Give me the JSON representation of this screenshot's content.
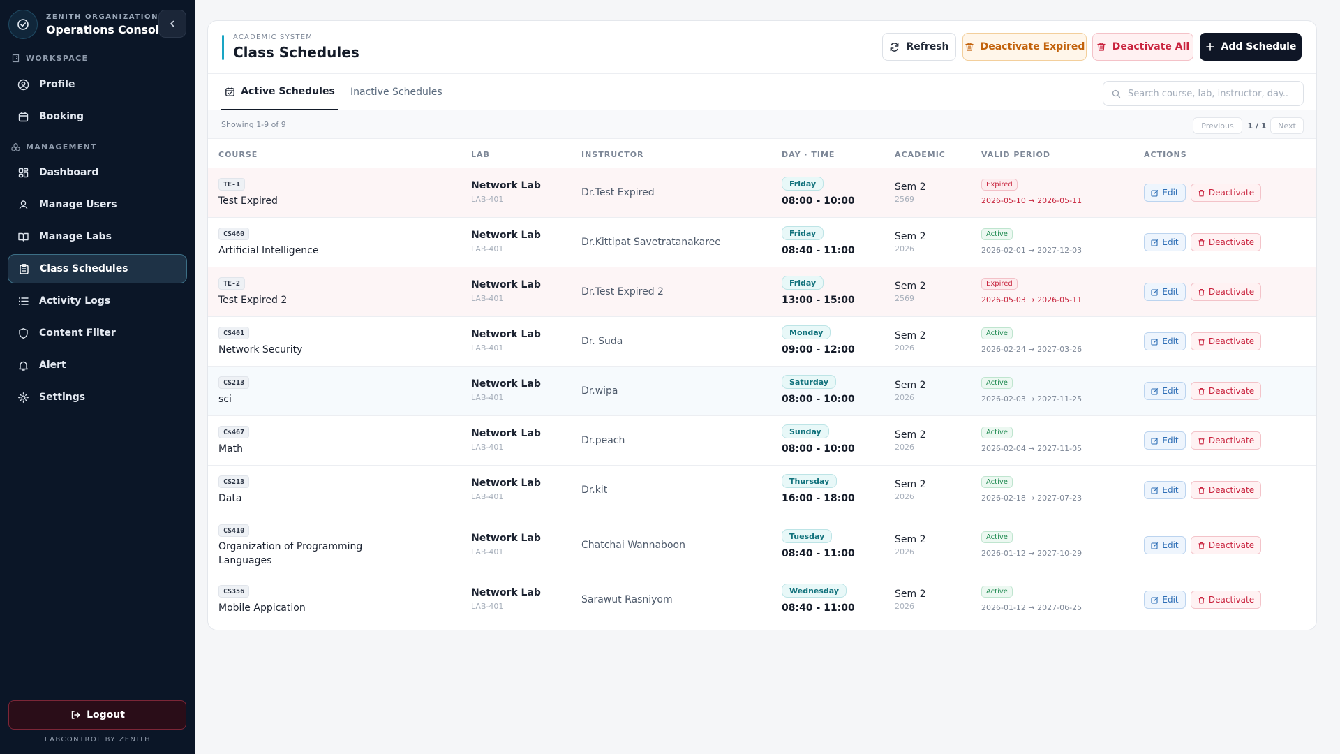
{
  "sidebar": {
    "org": "ZENITH ORGANIZATION",
    "app_name": "Operations Console",
    "workspace_label": "WORKSPACE",
    "management_label": "MANAGEMENT",
    "items": [
      {
        "label": "Profile",
        "icon": "user-circle-icon"
      },
      {
        "label": "Booking",
        "icon": "calendar-icon"
      },
      {
        "label": "Dashboard",
        "icon": "dashboard-icon"
      },
      {
        "label": "Manage Users",
        "icon": "user-icon"
      },
      {
        "label": "Manage Labs",
        "icon": "book-icon"
      },
      {
        "label": "Class Schedules",
        "icon": "clipboard-icon",
        "active": true
      },
      {
        "label": "Activity Logs",
        "icon": "list-icon"
      },
      {
        "label": "Content Filter",
        "icon": "shield-icon"
      },
      {
        "label": "Alert",
        "icon": "bell-icon"
      },
      {
        "label": "Settings",
        "icon": "gear-icon"
      }
    ],
    "logout_label": "Logout",
    "footer": "LABCONTROL BY ZENITH"
  },
  "header": {
    "eyebrow": "ACADEMIC SYSTEM",
    "title": "Class Schedules",
    "refresh_label": "Refresh",
    "deactivate_expired_label": "Deactivate Expired",
    "deactivate_all_label": "Deactivate All",
    "add_label": "Add Schedule"
  },
  "tabs": {
    "active_label": "Active Schedules",
    "inactive_label": "Inactive Schedules"
  },
  "search": {
    "placeholder": "Search course, lab, instructor, day..."
  },
  "pagination": {
    "showing": "Showing 1-9 of 9",
    "previous": "Previous",
    "page": "1 / 1",
    "next": "Next"
  },
  "table": {
    "columns": [
      "COURSE",
      "LAB",
      "INSTRUCTOR",
      "DAY · TIME",
      "ACADEMIC",
      "VALID PERIOD",
      "ACTIONS"
    ],
    "edit_label": "Edit",
    "deactivate_label": "Deactivate",
    "rows": [
      {
        "code": "TE-1",
        "course": "Test Expired",
        "lab": "Network Lab",
        "lab_code": "LAB-401",
        "instructor": "Dr.Test Expired",
        "day": "Friday",
        "time": "08:00 - 10:00",
        "sem": "Sem 2",
        "year": "2569",
        "status": "Expired",
        "period": "2026-05-10 → 2026-05-11"
      },
      {
        "code": "CS460",
        "course": "Artificial Intelligence",
        "lab": "Network Lab",
        "lab_code": "LAB-401",
        "instructor": "Dr.Kittipat Savetratanakaree",
        "day": "Friday",
        "time": "08:40 - 11:00",
        "sem": "Sem 2",
        "year": "2026",
        "status": "Active",
        "period": "2026-02-01 → 2027-12-03"
      },
      {
        "code": "TE-2",
        "course": "Test Expired 2",
        "lab": "Network Lab",
        "lab_code": "LAB-401",
        "instructor": "Dr.Test Expired 2",
        "day": "Friday",
        "time": "13:00 - 15:00",
        "sem": "Sem 2",
        "year": "2569",
        "status": "Expired",
        "period": "2026-05-03 → 2026-05-11"
      },
      {
        "code": "CS401",
        "course": "Network Security",
        "lab": "Network Lab",
        "lab_code": "LAB-401",
        "instructor": "Dr. Suda",
        "day": "Monday",
        "time": "09:00 - 12:00",
        "sem": "Sem 2",
        "year": "2026",
        "status": "Active",
        "period": "2026-02-24 → 2027-03-26"
      },
      {
        "code": "CS213",
        "course": "sci",
        "lab": "Network Lab",
        "lab_code": "LAB-401",
        "instructor": "Dr.wipa",
        "day": "Saturday",
        "time": "08:00 - 10:00",
        "sem": "Sem 2",
        "year": "2026",
        "status": "Active",
        "period": "2026-02-03 → 2027-11-25"
      },
      {
        "code": "Cs467",
        "course": "Math",
        "lab": "Network Lab",
        "lab_code": "LAB-401",
        "instructor": "Dr.peach",
        "day": "Sunday",
        "time": "08:00 - 10:00",
        "sem": "Sem 2",
        "year": "2026",
        "status": "Active",
        "period": "2026-02-04 → 2027-11-05"
      },
      {
        "code": "CS213",
        "course": "Data",
        "lab": "Network Lab",
        "lab_code": "LAB-401",
        "instructor": "Dr.kit",
        "day": "Thursday",
        "time": "16:00 - 18:00",
        "sem": "Sem 2",
        "year": "2026",
        "status": "Active",
        "period": "2026-02-18 → 2027-07-23"
      },
      {
        "code": "CS410",
        "course": "Organization of Programming Languages",
        "lab": "Network Lab",
        "lab_code": "LAB-401",
        "instructor": "Chatchai Wannaboon",
        "day": "Tuesday",
        "time": "08:40 - 11:00",
        "sem": "Sem 2",
        "year": "2026",
        "status": "Active",
        "period": "2026-01-12 → 2027-10-29"
      },
      {
        "code": "CS356",
        "course": "Mobile Appication",
        "lab": "Network Lab",
        "lab_code": "LAB-401",
        "instructor": "Sarawut Rasniyom",
        "day": "Wednesday",
        "time": "08:40 - 11:00",
        "sem": "Sem 2",
        "year": "2026",
        "status": "Active",
        "period": "2026-01-12 → 2027-06-25"
      }
    ]
  },
  "colors": {
    "sidebar_bg": "#0b1627",
    "accent": "#1aa5c4",
    "danger": "#c9233e",
    "warning": "#c2620c",
    "success": "#1f8a51"
  }
}
